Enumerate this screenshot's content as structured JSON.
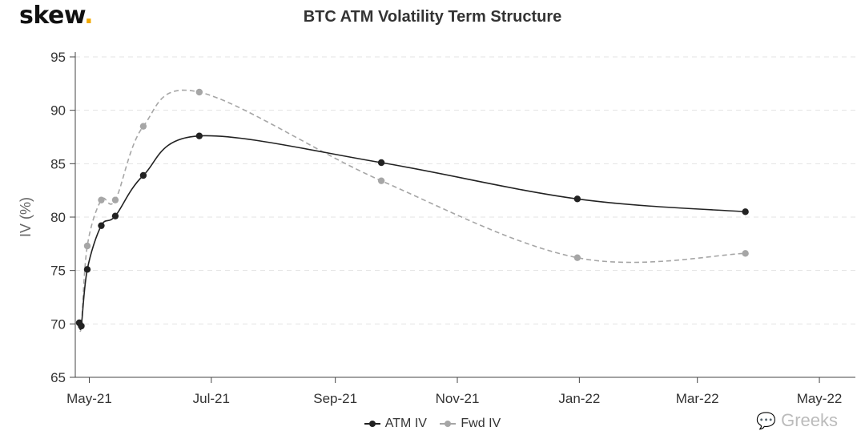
{
  "brand": {
    "name": "skew",
    "dot": "."
  },
  "watermark": {
    "text": "Greeks",
    "icon": "chat-bubbles-icon"
  },
  "chart_data": {
    "type": "line",
    "title": "BTC ATM Volatility Term Structure",
    "xlabel": "",
    "ylabel": "IV (%)",
    "ylim": [
      65,
      95
    ],
    "yticks": [
      65,
      70,
      75,
      80,
      85,
      90,
      95
    ],
    "xlim": [
      "2021-04-24",
      "2022-05-19"
    ],
    "xticks": [
      {
        "date": "2021-05-01",
        "label": "May-21"
      },
      {
        "date": "2021-07-01",
        "label": "Jul-21"
      },
      {
        "date": "2021-09-01",
        "label": "Sep-21"
      },
      {
        "date": "2021-11-01",
        "label": "Nov-21"
      },
      {
        "date": "2022-01-01",
        "label": "Jan-22"
      },
      {
        "date": "2022-03-01",
        "label": "Mar-22"
      },
      {
        "date": "2022-05-01",
        "label": "May-22"
      }
    ],
    "grid": true,
    "legend": "bottom",
    "series": [
      {
        "name": "ATM IV",
        "color": "#222222",
        "style": "solid",
        "points": [
          {
            "x": "2021-04-26",
            "y": 70.1
          },
          {
            "x": "2021-04-27",
            "y": 69.8
          },
          {
            "x": "2021-04-30",
            "y": 75.1
          },
          {
            "x": "2021-05-07",
            "y": 79.2
          },
          {
            "x": "2021-05-14",
            "y": 80.1
          },
          {
            "x": "2021-05-28",
            "y": 83.9
          },
          {
            "x": "2021-06-25",
            "y": 87.6
          },
          {
            "x": "2021-09-24",
            "y": 85.1
          },
          {
            "x": "2021-12-31",
            "y": 81.7
          },
          {
            "x": "2022-03-25",
            "y": 80.5
          }
        ]
      },
      {
        "name": "Fwd IV",
        "color": "#a6a6a6",
        "style": "dashed",
        "points": [
          {
            "x": "2021-04-26",
            "y": 70.1
          },
          {
            "x": "2021-04-27",
            "y": 69.8
          },
          {
            "x": "2021-04-30",
            "y": 77.3
          },
          {
            "x": "2021-05-07",
            "y": 81.6
          },
          {
            "x": "2021-05-14",
            "y": 81.6
          },
          {
            "x": "2021-05-28",
            "y": 88.5
          },
          {
            "x": "2021-06-25",
            "y": 91.7
          },
          {
            "x": "2021-09-24",
            "y": 83.4
          },
          {
            "x": "2021-12-31",
            "y": 76.2
          },
          {
            "x": "2022-03-25",
            "y": 76.6
          }
        ]
      }
    ]
  }
}
